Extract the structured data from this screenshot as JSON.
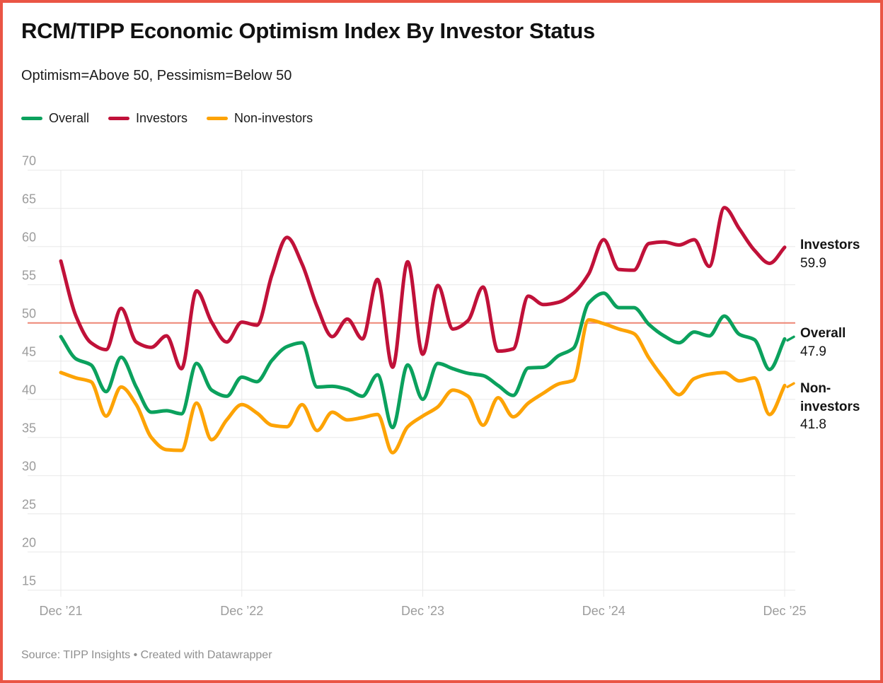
{
  "header": {
    "title": "RCM/TIPP Economic Optimism Index By Investor Status",
    "subtitle": "Optimism=Above 50, Pessimism=Below 50"
  },
  "source_note": "Source: TIPP Insights • Created with Datawrapper",
  "colors": {
    "frame_border": "#ea5545",
    "reference_line": "#ee8575",
    "gridline": "#e8e8e8",
    "axis_text": "#9c9c9c",
    "label_text": "#141414"
  },
  "chart_data": {
    "type": "line",
    "title": "RCM/TIPP Economic Optimism Index By Investor Status",
    "subtitle": "Optimism=Above 50, Pessimism=Below 50",
    "x_tick_labels": [
      "Dec ’21",
      "Dec ’22",
      "Dec ’23",
      "Dec ’24",
      "Dec ’25"
    ],
    "y_ticks": [
      70,
      65,
      60,
      55,
      50,
      45,
      40,
      35,
      30,
      25,
      20,
      15
    ],
    "ylim": [
      15,
      70
    ],
    "reference_line": 50,
    "grid": true,
    "legend_position": "top",
    "points_per_series": 49,
    "x_start": "Dec 2021",
    "x_end": "Dec 2025",
    "x_interval": "monthly",
    "series": [
      {
        "name": "Overall",
        "color": "#0ba15d",
        "end_value": "47.9",
        "values": [
          48.2,
          45.3,
          44.5,
          41.0,
          45.5,
          41.6,
          38.3,
          38.5,
          38.1,
          44.7,
          41.2,
          40.4,
          42.9,
          42.3,
          45.1,
          46.9,
          47.4,
          41.6,
          41.7,
          41.3,
          40.4,
          43.2,
          36.3,
          44.5,
          40.0,
          44.7,
          44.0,
          43.4,
          43.1,
          41.8,
          40.5,
          44.1,
          44.2,
          45.7,
          46.7,
          52.6,
          53.9,
          52.0,
          52.0,
          49.8,
          48.3,
          47.4,
          48.8,
          48.3,
          50.9,
          48.5,
          47.8,
          43.9,
          47.9
        ]
      },
      {
        "name": "Investors",
        "color": "#c01139",
        "end_value": "59.9",
        "values": [
          58.1,
          50.9,
          47.4,
          46.5,
          51.9,
          47.5,
          46.8,
          48.3,
          44.0,
          54.2,
          50.1,
          47.5,
          50.1,
          49.7,
          56.3,
          61.2,
          57.7,
          52.1,
          48.2,
          50.5,
          47.9,
          55.7,
          44.2,
          58.0,
          45.9,
          54.9,
          49.2,
          50.3,
          54.7,
          46.3,
          46.6,
          53.5,
          52.4,
          52.7,
          53.9,
          56.4,
          60.9,
          57.0,
          56.9,
          60.4,
          60.6,
          60.2,
          60.9,
          57.4,
          65.1,
          62.3,
          59.5,
          57.8,
          59.9
        ]
      },
      {
        "name": "Non-investors",
        "color": "#fda305",
        "end_value": "41.8",
        "values": [
          43.5,
          42.8,
          42.3,
          37.8,
          41.6,
          39.3,
          35.0,
          33.4,
          33.3,
          39.5,
          34.7,
          37.3,
          39.3,
          38.2,
          36.6,
          36.4,
          39.3,
          35.9,
          38.3,
          37.3,
          37.6,
          38.0,
          33.0,
          36.4,
          37.8,
          39.0,
          41.2,
          40.4,
          36.6,
          40.2,
          37.7,
          39.5,
          40.8,
          42.0,
          42.5,
          50.4,
          49.9,
          49.2,
          48.6,
          45.4,
          42.7,
          40.6,
          42.7,
          43.3,
          43.5,
          42.4,
          42.8,
          38.0,
          41.8
        ]
      }
    ]
  }
}
